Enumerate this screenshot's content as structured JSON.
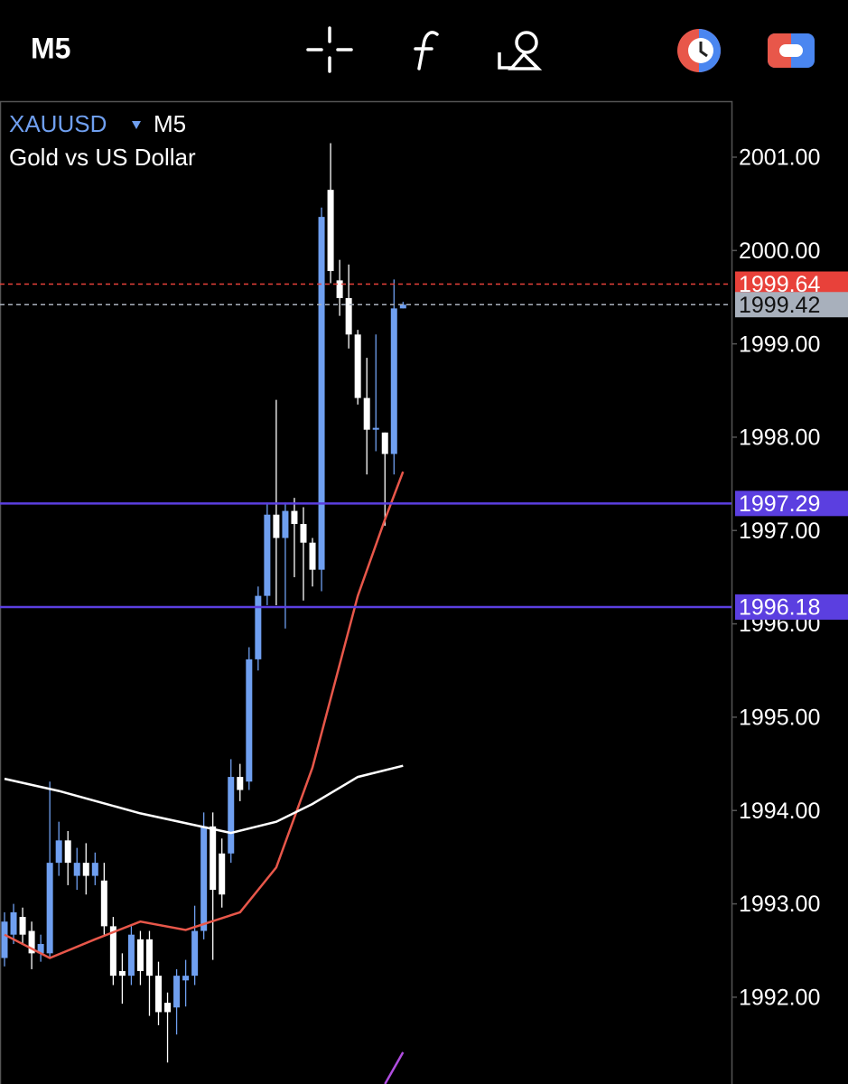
{
  "chart_data": {
    "type": "candlestick",
    "toolbar_timeframe": "M5",
    "symbol": "XAUUSD",
    "timeframe": "M5",
    "subtitle": "Gold vs US Dollar",
    "ylim": [
      1991.07,
      2001.6
    ],
    "yticks": [
      {
        "value": 1992,
        "label": "1992.00"
      },
      {
        "value": 1993,
        "label": "1993.00"
      },
      {
        "value": 1994,
        "label": "1994.00"
      },
      {
        "value": 1995,
        "label": "1995.00"
      },
      {
        "value": 1996,
        "label": "1996.00"
      },
      {
        "value": 1997,
        "label": "1997.00"
      },
      {
        "value": 1998,
        "label": "1998.00"
      },
      {
        "value": 1999,
        "label": "1999.00"
      },
      {
        "value": 2000,
        "label": "2000.00"
      },
      {
        "value": 2001,
        "label": "2001.00"
      }
    ],
    "bull_color": "#6f9ff0",
    "bear_color": "#ffffff",
    "candles": {
      "open": [
        1992.42,
        1992.67,
        1992.86,
        1992.71,
        1992.47,
        1992.47,
        1993.44,
        1993.68,
        1993.3,
        1993.44,
        1993.3,
        1993.25,
        1992.76,
        1992.28,
        1992.23,
        1992.62,
        1992.62,
        1992.23,
        1991.94,
        1991.89,
        1992.18,
        1992.23,
        1992.71,
        1993.83,
        1993.54,
        1993.54,
        1994.36,
        1994.31,
        1995.62,
        1996.3,
        1997.17,
        1996.92,
        1997.21,
        1997.07,
        1996.87,
        1996.58,
        2000.65,
        1999.68,
        1999.49,
        1999.1,
        1998.42,
        1998.08,
        1998.05,
        1997.82,
        1999.38
      ],
      "high": [
        1992.91,
        1993.0,
        1992.96,
        1992.81,
        1992.67,
        1994.31,
        1993.88,
        1993.78,
        1993.6,
        1993.65,
        1993.55,
        1993.44,
        1992.86,
        1992.47,
        1992.76,
        1992.71,
        1992.71,
        1992.38,
        1992.05,
        1992.3,
        1992.4,
        1992.98,
        1993.98,
        1993.98,
        1993.7,
        1994.55,
        1994.5,
        1995.75,
        1996.4,
        1997.3,
        1998.4,
        1997.3,
        1997.35,
        1997.25,
        1996.92,
        2000.46,
        2001.15,
        1999.9,
        1999.85,
        1999.15,
        1998.85,
        1999.1,
        1998.05,
        1999.69,
        1999.45
      ],
      "low": [
        1992.33,
        1992.57,
        1992.57,
        1992.3,
        1992.38,
        1992.42,
        1993.3,
        1993.2,
        1993.15,
        1993.1,
        1993.2,
        1992.67,
        1992.13,
        1991.93,
        1992.13,
        1992.13,
        1991.8,
        1991.7,
        1991.3,
        1991.6,
        1991.9,
        1992.13,
        1992.62,
        1992.4,
        1992.96,
        1993.44,
        1994.1,
        1994.22,
        1995.5,
        1996.2,
        1996.2,
        1995.95,
        1996.5,
        1996.25,
        1996.4,
        1996.35,
        1999.65,
        1999.3,
        1998.95,
        1998.35,
        1997.6,
        1997.85,
        1997.05,
        1997.6,
        1999.38
      ],
      "close": [
        1992.81,
        1992.91,
        1992.67,
        1992.47,
        1992.57,
        1993.44,
        1993.68,
        1993.44,
        1993.44,
        1993.3,
        1993.44,
        1992.76,
        1992.23,
        1992.23,
        1992.67,
        1992.28,
        1992.23,
        1991.84,
        1991.84,
        1992.23,
        1992.23,
        1992.71,
        1993.83,
        1993.15,
        1993.1,
        1994.36,
        1994.22,
        1995.62,
        1996.3,
        1997.17,
        1996.92,
        1997.21,
        1997.07,
        1996.87,
        1996.58,
        2000.36,
        1999.78,
        1999.49,
        1999.1,
        1998.42,
        1998.08,
        1998.1,
        1997.82,
        1999.38,
        1999.42
      ]
    },
    "lines": [
      {
        "color": "#e8574a",
        "x": [
          0,
          5,
          10,
          15,
          20,
          26,
          30,
          34,
          39,
          42,
          44
        ],
        "values": [
          1992.67,
          1992.42,
          1992.62,
          1992.81,
          1992.72,
          1992.91,
          1993.39,
          1994.46,
          1996.3,
          1997.12,
          1997.63
        ]
      },
      {
        "color": "#ffffff",
        "x": [
          0,
          6,
          15,
          25,
          30,
          34,
          39,
          44
        ],
        "values": [
          1994.34,
          1994.21,
          1993.97,
          1993.76,
          1993.88,
          1994.07,
          1994.36,
          1994.48
        ]
      },
      {
        "color": "#b04de0",
        "x": [
          42,
          44
        ],
        "values": [
          1991.07,
          1991.41
        ]
      }
    ],
    "levels": [
      {
        "value": 1999.64,
        "color": "#e8413a",
        "style": "dashed",
        "text_color": "#ffffff"
      },
      {
        "value": 1999.42,
        "color": "#a8b0bc",
        "style": "dashed",
        "text_color": "#111111"
      },
      {
        "value": 1997.29,
        "color": "#5b3fe0",
        "style": "solid",
        "text_color": "#ffffff"
      },
      {
        "value": 1996.18,
        "color": "#5b3fe0",
        "style": "solid",
        "text_color": "#ffffff"
      }
    ]
  }
}
